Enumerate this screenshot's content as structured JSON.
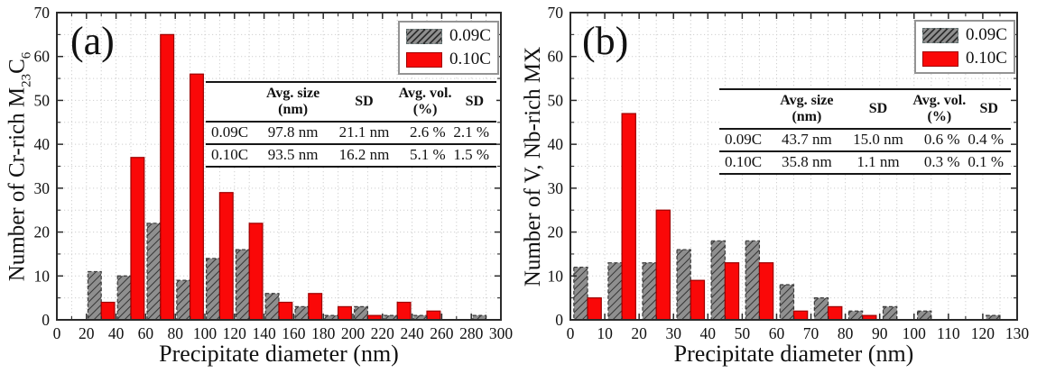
{
  "figure": {
    "background": "#ffffff",
    "description": "Two-panel precipitate size distribution histograms with inset statistics tables"
  },
  "colors": {
    "series_009c_fill": "#8f8f8f",
    "series_009c_hatch": "#2f2f2f",
    "series_009c_edge": "#3a3a3a",
    "series_010c_fill": "#fa0808",
    "series_010c_edge": "#9c0000",
    "grid": "#cfcfcf",
    "axis": "#2b2b2b",
    "legend_border": "#949494",
    "text": "#111111"
  },
  "chart_data": [
    {
      "type": "bar",
      "panel_label": "(a)",
      "xlabel": "Precipitate diameter (nm)",
      "ylabel": "Number of Cr-rich M23C6",
      "ylabel_segments": [
        {
          "text": "Number of Cr-rich M"
        },
        {
          "text": "23",
          "sub": true
        },
        {
          "text": "C"
        },
        {
          "text": "6",
          "sub": true
        }
      ],
      "xlim": [
        0,
        300
      ],
      "ylim": [
        0,
        70
      ],
      "x_major_step": 20,
      "x_minor_step": 10,
      "y_major_step": 10,
      "y_minor_step": 5,
      "grid": true,
      "legend_position": "top-right",
      "bin_width": 20,
      "bin_centers": [
        30,
        50,
        70,
        90,
        110,
        130,
        150,
        170,
        190,
        210,
        230,
        250,
        270,
        290
      ],
      "series": [
        {
          "name": "0.09C",
          "style": "hatched-gray",
          "values": [
            11,
            10,
            22,
            9,
            14,
            16,
            6,
            3,
            1,
            3,
            1,
            1,
            0,
            1
          ]
        },
        {
          "name": "0.10C",
          "style": "red",
          "values": [
            4,
            37,
            65,
            56,
            29,
            22,
            4,
            6,
            3,
            1,
            4,
            2,
            0,
            0
          ]
        }
      ],
      "inset_table": {
        "headers": [
          "",
          "Avg. size\n(nm)",
          "SD",
          "Avg. vol.\n(%)",
          "SD"
        ],
        "rows": [
          [
            "0.09C",
            "97.8 nm",
            "21.1 nm",
            "2.6 %",
            "2.1 %"
          ],
          [
            "0.10C",
            "93.5 nm",
            "16.2 nm",
            "5.1 %",
            "1.5 %"
          ]
        ]
      }
    },
    {
      "type": "bar",
      "panel_label": "(b)",
      "xlabel": "Precipitate diameter (nm)",
      "ylabel": "Number of V, Nb-rich MX",
      "ylabel_segments": [
        {
          "text": "Number of V, Nb-rich MX"
        }
      ],
      "xlim": [
        0,
        130
      ],
      "ylim": [
        0,
        70
      ],
      "x_major_step": 10,
      "x_minor_step": 5,
      "y_major_step": 10,
      "y_minor_step": 5,
      "grid": true,
      "legend_position": "top-right",
      "bin_width": 10,
      "bin_centers": [
        5,
        15,
        25,
        35,
        45,
        55,
        65,
        75,
        85,
        95,
        105,
        115,
        125
      ],
      "series": [
        {
          "name": "0.09C",
          "style": "hatched-gray",
          "values": [
            12,
            13,
            13,
            16,
            18,
            18,
            8,
            5,
            2,
            3,
            2,
            0,
            1
          ]
        },
        {
          "name": "0.10C",
          "style": "red",
          "values": [
            5,
            47,
            25,
            9,
            13,
            13,
            2,
            3,
            1,
            0,
            0,
            0,
            0
          ]
        }
      ],
      "inset_table": {
        "headers": [
          "",
          "Avg. size\n(nm)",
          "SD",
          "Avg. vol.\n(%)",
          "SD"
        ],
        "rows": [
          [
            "0.09C",
            "43.7 nm",
            "15.0 nm",
            "0.6 %",
            "0.4 %"
          ],
          [
            "0.10C",
            "35.8 nm",
            "1.1 nm",
            "0.3 %",
            "0.1 %"
          ]
        ]
      }
    }
  ]
}
